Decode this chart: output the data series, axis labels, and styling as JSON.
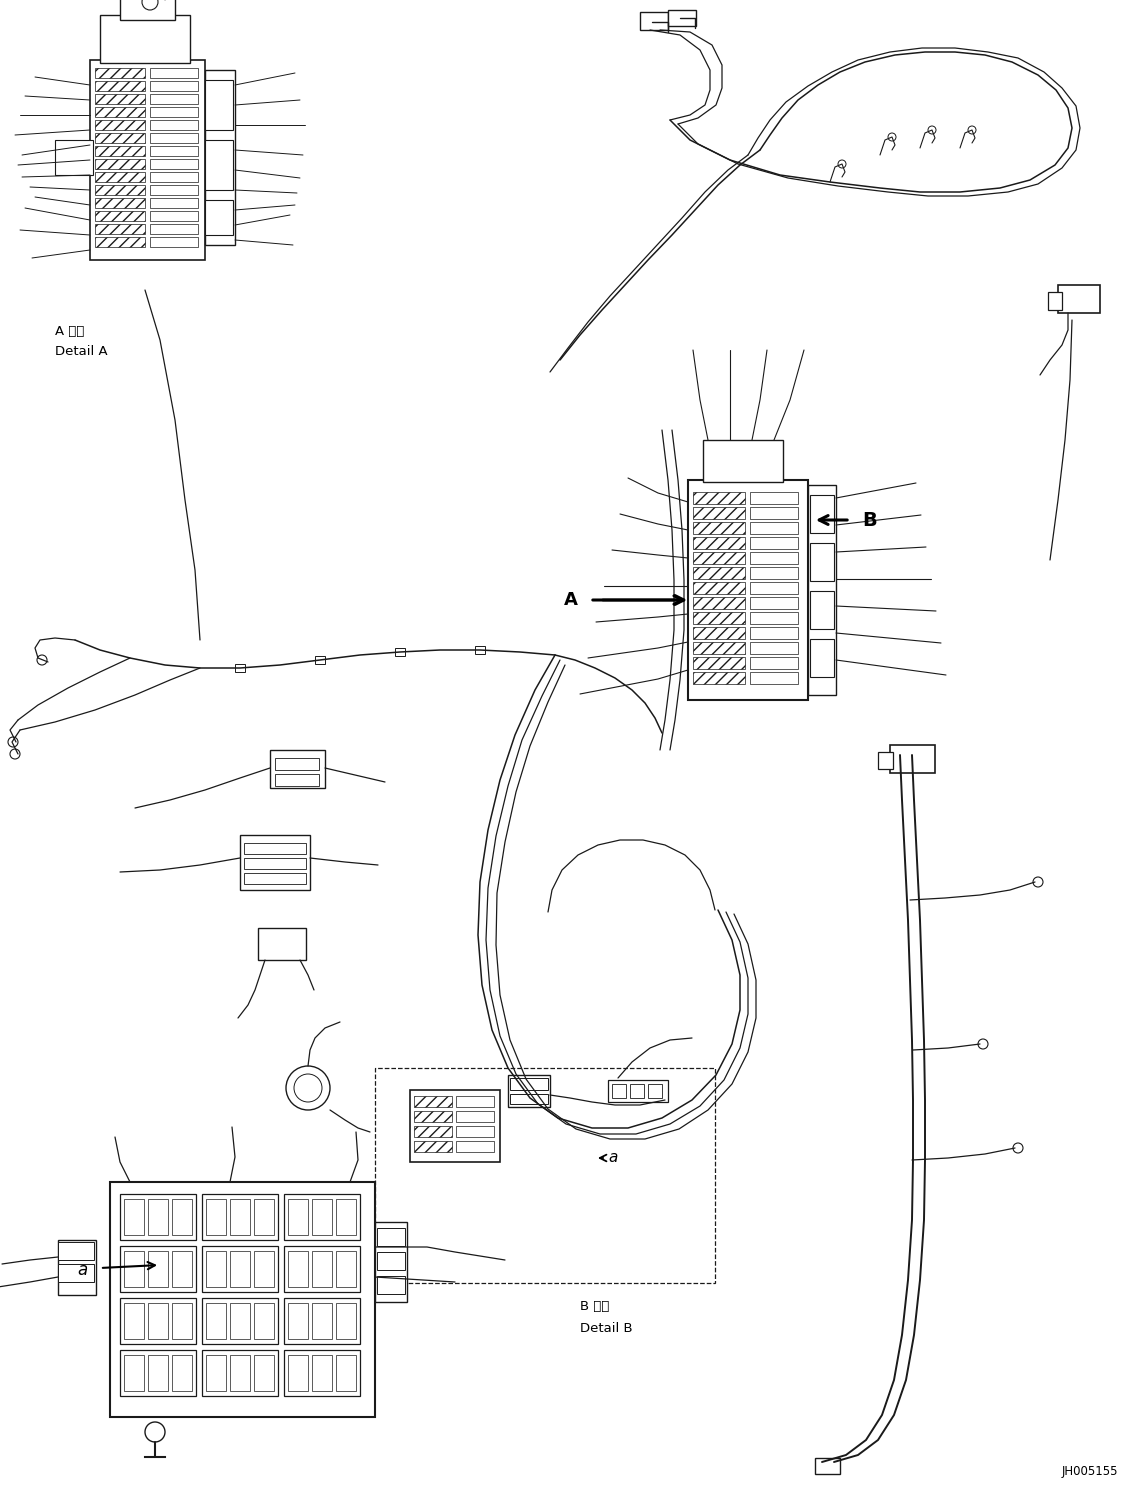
{
  "background_color": "#ffffff",
  "line_color": "#1a1a1a",
  "figure_width": 11.41,
  "figure_height": 14.92,
  "dpi": 100,
  "label_A_japanese": "A 詳細",
  "label_A_english": "Detail A",
  "label_B_japanese": "B 詳細",
  "label_B_english": "Detail B",
  "label_A_marker": "A",
  "label_B_marker": "B",
  "label_a_small": "a",
  "part_number": "JH005155",
  "text_color": "#000000",
  "draw_color": "#1a1a1a",
  "lw_main": 1.4,
  "lw_thin": 0.9,
  "lw_thick": 2.0,
  "lw_med": 1.1
}
